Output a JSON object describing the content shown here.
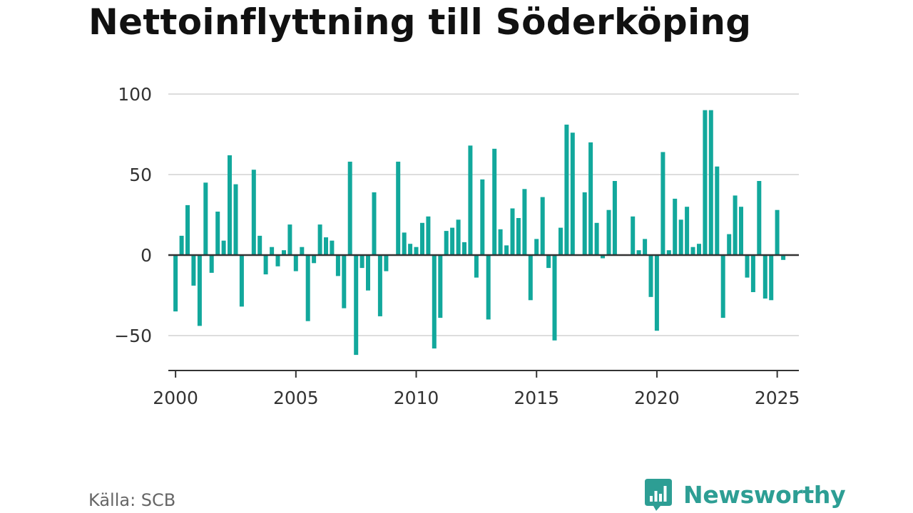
{
  "title": "Nettoinflyttning till Söderköping",
  "source": "Källa: SCB",
  "logo": {
    "text": "Newsworthy",
    "icon": "bar-chart-speech-bubble-icon"
  },
  "colors": {
    "bar": "#12a89c",
    "logo": "#2d9e94",
    "grid": "#dddddd",
    "axis": "#333333"
  },
  "chart_data": {
    "type": "bar",
    "title": "Nettoinflyttning till Söderköping",
    "xlabel": "",
    "ylabel": "",
    "ylim": [
      -70,
      100
    ],
    "xlim": [
      1999.7,
      2025.9
    ],
    "grid": true,
    "yticks": [
      100,
      50,
      0,
      -50
    ],
    "ytick_labels": [
      "100",
      "50",
      "0",
      "−50"
    ],
    "xticks": [
      2000,
      2005,
      2010,
      2015,
      2020,
      2025
    ],
    "xtick_labels": [
      "2000",
      "2005",
      "2010",
      "2015",
      "2020",
      "2025"
    ],
    "series": [
      {
        "x": [
          2000.0,
          2000.25,
          2000.5,
          2000.75,
          2001.0,
          2001.25,
          2001.5,
          2001.75,
          2002.0,
          2002.25,
          2002.5,
          2002.75,
          2003.0,
          2003.25,
          2003.5,
          2003.75,
          2004.0,
          2004.25,
          2004.5,
          2004.75,
          2005.0,
          2005.25,
          2005.5,
          2005.75,
          2006.0,
          2006.25,
          2006.5,
          2006.75,
          2007.0,
          2007.25,
          2007.5,
          2007.75,
          2008.0,
          2008.25,
          2008.5,
          2008.75,
          2009.0,
          2009.25,
          2009.5,
          2009.75,
          2010.0,
          2010.25,
          2010.5,
          2010.75,
          2011.0,
          2011.25,
          2011.5,
          2011.75,
          2012.0,
          2012.25,
          2012.5,
          2012.75,
          2013.0,
          2013.25,
          2013.5,
          2013.75,
          2014.0,
          2014.25,
          2014.5,
          2014.75,
          2015.0,
          2015.25,
          2015.5,
          2015.75,
          2016.0,
          2016.25,
          2016.5,
          2016.75,
          2017.0,
          2017.25,
          2017.5,
          2017.75,
          2018.0,
          2018.25,
          2018.5,
          2018.75,
          2019.0,
          2019.25,
          2019.5,
          2019.75,
          2020.0,
          2020.25,
          2020.5,
          2020.75,
          2021.0,
          2021.25,
          2021.5,
          2021.75,
          2022.0,
          2022.25,
          2022.5,
          2022.75,
          2023.0,
          2023.25,
          2023.5,
          2023.75,
          2024.0,
          2024.25,
          2024.5,
          2024.75,
          2025.0,
          2025.25
        ],
        "values": [
          -35,
          12,
          31,
          -19,
          -44,
          45,
          -11,
          27,
          9,
          62,
          44,
          -32,
          0,
          53,
          12,
          -12,
          5,
          -7,
          3,
          19,
          -10,
          5,
          -41,
          -5,
          19,
          11,
          9,
          -13,
          -33,
          58,
          -62,
          -8,
          -22,
          39,
          -38,
          -10,
          0,
          58,
          14,
          7,
          5,
          20,
          24,
          -58,
          -39,
          15,
          17,
          22,
          8,
          68,
          -14,
          47,
          -40,
          66,
          16,
          6,
          29,
          23,
          41,
          -28,
          10,
          36,
          -8,
          -53,
          17,
          81,
          76,
          0,
          39,
          70,
          20,
          -2,
          28,
          46,
          0,
          0,
          24,
          3,
          10,
          -26,
          -47,
          64,
          3,
          35,
          22,
          30,
          5,
          7,
          90,
          90,
          55,
          -39,
          13,
          37,
          30,
          -14,
          -23,
          46,
          -27,
          -28,
          28,
          -3
        ]
      }
    ]
  }
}
